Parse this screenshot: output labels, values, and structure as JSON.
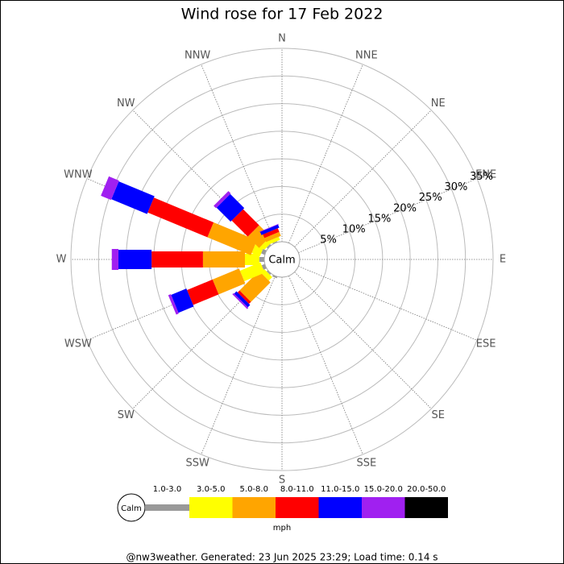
{
  "chart_data": {
    "type": "windrose",
    "title": "Wind rose for 17 Feb 2022",
    "calm_label": "Calm",
    "directions": [
      "N",
      "NNE",
      "NE",
      "ENE",
      "E",
      "ESE",
      "SE",
      "SSE",
      "S",
      "SSW",
      "SW",
      "WSW",
      "W",
      "WNW",
      "NW",
      "NNW"
    ],
    "rlim": [
      0,
      35
    ],
    "rticks": [
      {
        "value": 5,
        "label": "5%"
      },
      {
        "value": 10,
        "label": "10%"
      },
      {
        "value": 15,
        "label": "15%"
      },
      {
        "value": 20,
        "label": "20%"
      },
      {
        "value": 25,
        "label": "25%"
      },
      {
        "value": 30,
        "label": "30%"
      },
      {
        "value": 35,
        "label": "35%"
      }
    ],
    "units": "mph",
    "series": [
      {
        "name": "1.0-3.0",
        "color": "#999999",
        "values": [
          0,
          0,
          0,
          0,
          0,
          0,
          0,
          0,
          0,
          0.3,
          0.3,
          0.6,
          0.9,
          0.7,
          0.3,
          0.2
        ]
      },
      {
        "name": "3.0-5.0",
        "color": "#ffff00",
        "values": [
          0,
          0,
          0,
          0,
          0,
          0,
          0,
          0,
          0,
          0,
          0.9,
          4.0,
          2.6,
          1.6,
          0.9,
          0.6
        ]
      },
      {
        "name": "5.0-8.0",
        "color": "#ffa500",
        "values": [
          0,
          0,
          0,
          0,
          0,
          0,
          0,
          0,
          0,
          0,
          5.0,
          5.2,
          7.6,
          8.5,
          2.9,
          0.8
        ]
      },
      {
        "name": "8.0-11.0",
        "color": "#ff0000",
        "values": [
          0,
          0,
          0,
          0,
          0,
          0,
          0,
          0,
          0,
          0,
          0.5,
          5.0,
          9.3,
          11.7,
          4.1,
          0.7
        ]
      },
      {
        "name": "11.0-15.0",
        "color": "#0000ff",
        "values": [
          0,
          0,
          0,
          0,
          0,
          0,
          0,
          0,
          0,
          0,
          0.6,
          3.0,
          6.0,
          7.0,
          3.6,
          0.6
        ]
      },
      {
        "name": "15.0-20.0",
        "color": "#a020f0",
        "values": [
          0,
          0,
          0,
          0,
          0,
          0,
          0,
          0,
          0,
          0,
          0.3,
          0.5,
          1.2,
          2.0,
          0.6,
          0.1
        ]
      },
      {
        "name": "20.0-50.0",
        "color": "#000000",
        "values": [
          0,
          0,
          0,
          0,
          0,
          0,
          0,
          0,
          0,
          0,
          0,
          0,
          0,
          0,
          0,
          0
        ]
      }
    ],
    "footer": "@nw3weather. Generated: 23 Jun 2025 23:29; Load time: 0.14 s"
  }
}
